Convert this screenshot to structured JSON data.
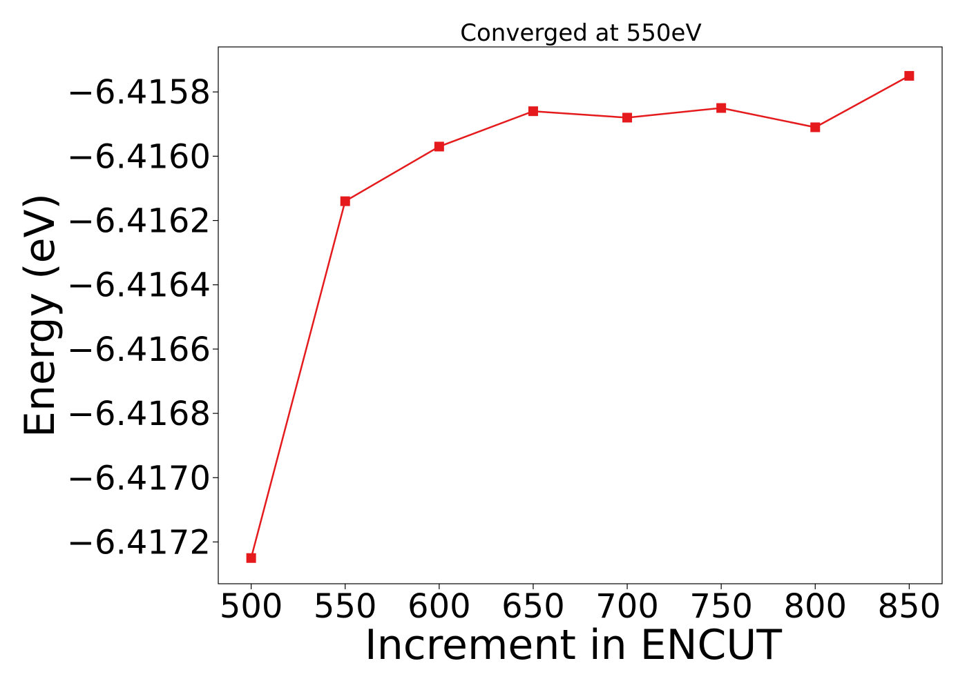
{
  "chart_data": {
    "type": "line",
    "title": "Converged at 550eV",
    "xlabel": "Increment in ENCUT",
    "ylabel": "Energy (eV)",
    "x": [
      500,
      550,
      600,
      650,
      700,
      750,
      800,
      850
    ],
    "series": [
      {
        "values": [
          -6.41725,
          -6.41614,
          -6.41597,
          -6.41586,
          -6.41588,
          -6.41585,
          -6.41591,
          -6.41575
        ],
        "color": "#e41a1c",
        "marker": "square"
      }
    ],
    "xticks": [
      500,
      550,
      600,
      650,
      700,
      750,
      800,
      850
    ],
    "xtick_labels": [
      "500",
      "550",
      "600",
      "650",
      "700",
      "750",
      "800",
      "850"
    ],
    "yticks": [
      -6.4172,
      -6.417,
      -6.4168,
      -6.4166,
      -6.4164,
      -6.4162,
      -6.416,
      -6.4158
    ],
    "ytick_labels": [
      "−6.4172",
      "−6.4170",
      "−6.4168",
      "−6.4166",
      "−6.4164",
      "−6.4162",
      "−6.4160",
      "−6.4158"
    ],
    "xlim": [
      482.5,
      867.5
    ],
    "ylim": [
      -6.41733,
      -6.41566
    ],
    "grid": false,
    "legend": "none"
  }
}
